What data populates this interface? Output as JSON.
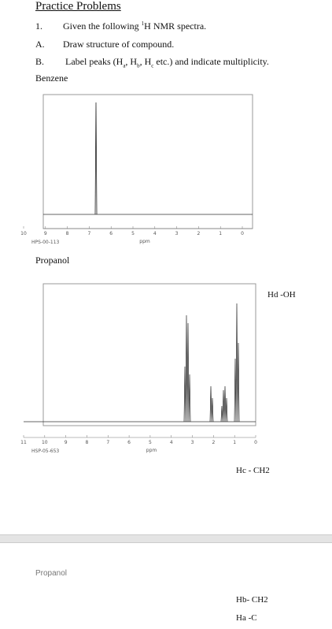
{
  "header": {
    "title": "Practice Problems"
  },
  "instructions": [
    {
      "number": "1.",
      "text": [
        "Given the following ",
        "1",
        "H NMR spectra."
      ]
    },
    {
      "number": "A.",
      "text": [
        "Draw structure of compound."
      ]
    },
    {
      "number": "B.",
      "text": [
        "Label peaks (H",
        "a",
        ", H",
        "b",
        ", H",
        "c",
        " etc.) and indicate multiplicity."
      ]
    }
  ],
  "spectra": [
    {
      "title": "Benzene",
      "tick_labels": [
        "10",
        "9",
        "8",
        "7",
        "6",
        "5",
        "4",
        "3",
        "2",
        "1",
        "0"
      ],
      "x_label": "ppm",
      "code": "HPS-00-113"
    },
    {
      "title": "Propanol",
      "tick_labels": [
        "11",
        "10",
        "9",
        "8",
        "7",
        "6",
        "5",
        "4",
        "3",
        "2",
        "1",
        "0"
      ],
      "x_label": "ppm",
      "code": "HSP-05-653"
    }
  ],
  "annotations": {
    "hd": "Hd -OH",
    "hc": "Hc - CH2",
    "hb": "Hb- CH2",
    "ha": "Ha -C"
  },
  "caption": "Propanol"
}
